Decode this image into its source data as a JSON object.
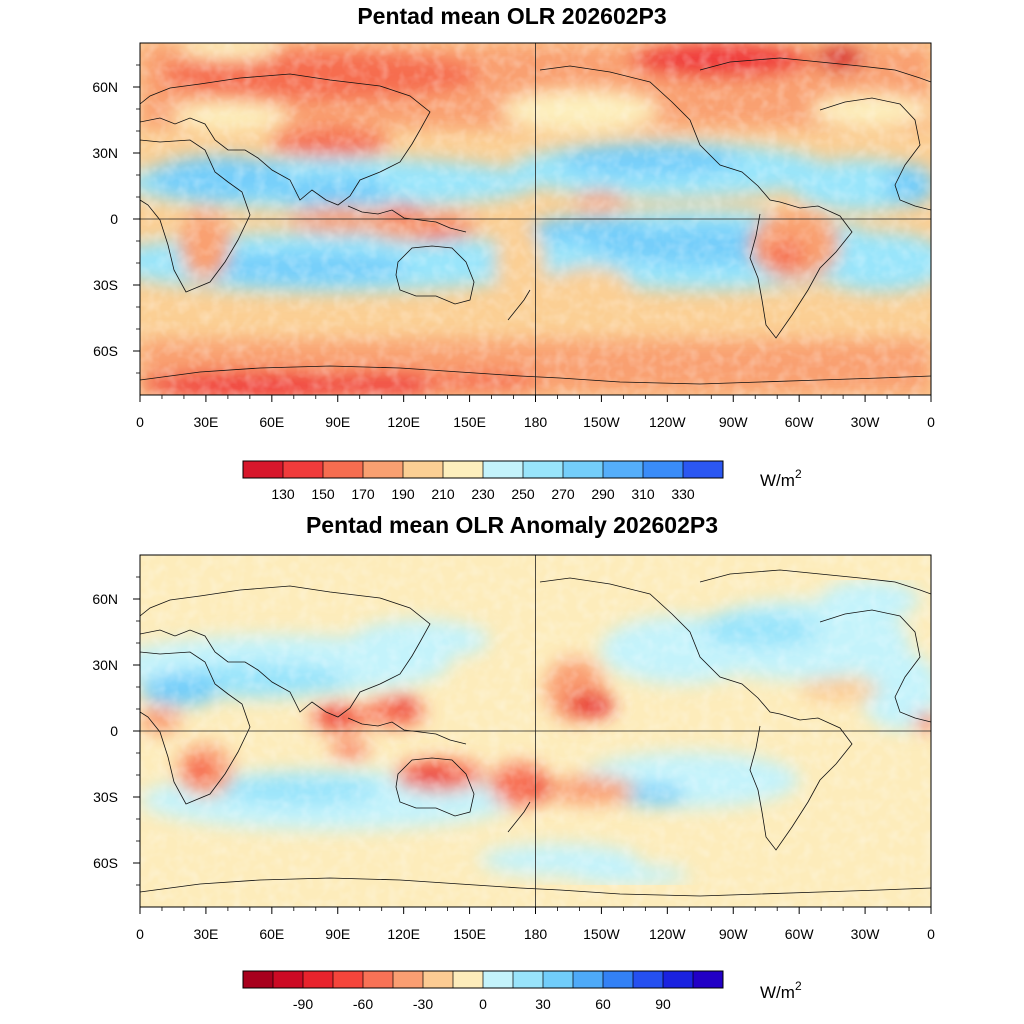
{
  "chart_data": [
    {
      "type": "heatmap",
      "title": "Pentad mean OLR 202602P3",
      "variable": "Outgoing Longwave Radiation",
      "units": "W/m2",
      "units_base": "W/m",
      "units_exp": "2",
      "projection": "cylindrical equidistant",
      "x_ticks": [
        "0",
        "30E",
        "60E",
        "90E",
        "120E",
        "150E",
        "180",
        "150W",
        "120W",
        "90W",
        "60W",
        "30W",
        "0"
      ],
      "y_ticks": [
        "60N",
        "30N",
        "0",
        "30S",
        "60S"
      ],
      "lon_range": [
        0,
        360
      ],
      "lat_range": [
        -80,
        80
      ],
      "colorbar": {
        "levels": [
          130,
          150,
          170,
          190,
          210,
          230,
          250,
          270,
          290,
          310,
          330
        ],
        "labels": [
          "130",
          "150",
          "170",
          "190",
          "210",
          "230",
          "250",
          "270",
          "290",
          "310",
          "330"
        ],
        "colors": [
          "#d7172b",
          "#f03b3b",
          "#f66d50",
          "#f9a071",
          "#fbcf94",
          "#fdefbd",
          "#c4f3fb",
          "#99e5fb",
          "#74cefa",
          "#55aefa",
          "#3a8cf8",
          "#2b57f2"
        ]
      }
    },
    {
      "type": "heatmap",
      "title": "Pentad mean OLR Anomaly 202602P3",
      "variable": "Outgoing Longwave Radiation Anomaly",
      "units": "W/m2",
      "units_base": "W/m",
      "units_exp": "2",
      "projection": "cylindrical equidistant",
      "x_ticks": [
        "0",
        "30E",
        "60E",
        "90E",
        "120E",
        "150E",
        "180",
        "150W",
        "120W",
        "90W",
        "60W",
        "30W",
        "0"
      ],
      "y_ticks": [
        "60N",
        "30N",
        "0",
        "30S",
        "60S"
      ],
      "lon_range": [
        0,
        360
      ],
      "lat_range": [
        -80,
        80
      ],
      "colorbar": {
        "levels": [
          -105,
          -90,
          -75,
          -60,
          -45,
          -30,
          -15,
          0,
          15,
          30,
          45,
          60,
          75,
          90,
          105
        ],
        "labels": [
          "-90",
          "-60",
          "-30",
          "0",
          "30",
          "60",
          "90"
        ],
        "colors": [
          "#a8001d",
          "#cc0a24",
          "#e8232c",
          "#f5453b",
          "#f87256",
          "#fa9e72",
          "#fccb93",
          "#fdecbb",
          "#c4f3fb",
          "#99e4fb",
          "#71cdfa",
          "#4eaaf8",
          "#3381f5",
          "#2550f0",
          "#1a22e0",
          "#2200c6"
        ]
      }
    }
  ]
}
